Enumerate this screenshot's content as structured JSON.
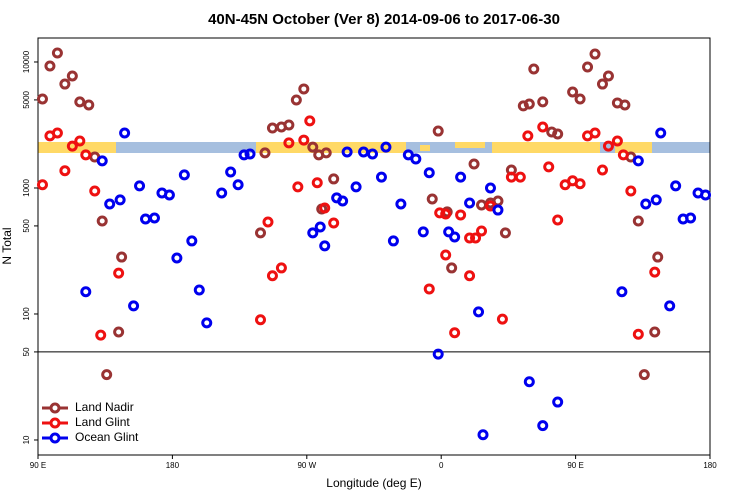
{
  "chart_data": {
    "type": "scatter",
    "title": "40N-45N October (Ver 8)   2014-09-06 to 2017-06-30",
    "x_label": "Longitude (deg E)",
    "y_label": "N Total",
    "log_y": true,
    "legend": "bottom-left",
    "hline": 50,
    "xlim": [
      90,
      540
    ],
    "xticks": [
      {
        "value": 90,
        "label": "90 E"
      },
      180,
      {
        "value": 270,
        "label": "90 W"
      },
      {
        "value": 360,
        "label": "0"
      },
      {
        "value": 450,
        "label": "90 E"
      },
      {
        "value": 540,
        "label": "180"
      }
    ],
    "ylim": [
      7.6,
      15500
    ],
    "yticks": [
      10,
      50,
      100,
      500,
      1000,
      5000,
      10000
    ],
    "series": [
      {
        "name": "Land Nadir",
        "color": "#993333",
        "x": [
          93,
          98,
          103,
          108,
          113,
          118,
          124,
          128,
          133,
          136,
          144,
          146,
          239,
          242,
          247,
          253,
          258,
          263,
          268,
          274,
          278,
          283,
          280,
          288,
          354,
          358,
          364,
          367,
          382,
          387,
          393,
          398,
          403,
          407,
          415,
          419,
          422,
          428,
          434,
          438,
          448,
          453,
          458,
          463,
          468,
          472,
          478,
          483,
          487,
          492,
          496,
          503,
          505
        ],
        "values": [
          5080,
          9290,
          11780,
          6680,
          7740,
          4820,
          4560,
          1760,
          547,
          33,
          72,
          283,
          440,
          1900,
          2990,
          3050,
          3160,
          4990,
          6110,
          2110,
          1830,
          1900,
          681,
          1180,
          818,
          2830,
          646,
          232,
          1550,
          733,
          760,
          788,
          440,
          1390,
          4480,
          4640,
          8790,
          4820,
          2780,
          2680,
          5780,
          5080,
          9130,
          11560,
          6680,
          7740,
          4730,
          4560,
          1760,
          547,
          33,
          72,
          283
        ]
      },
      {
        "name": "Land Glint",
        "color": "#ee1111",
        "x": [
          93,
          98,
          103,
          108,
          113,
          118,
          122,
          128,
          132,
          144,
          239,
          244,
          247,
          253,
          258,
          264,
          268,
          272,
          277,
          282,
          288,
          352,
          359,
          363,
          363,
          369,
          373,
          379,
          379,
          383,
          387,
          393,
          401,
          407,
          413,
          418,
          428,
          432,
          438,
          443,
          448,
          453,
          458,
          463,
          468,
          472,
          478,
          482,
          487,
          492,
          503
        ],
        "values": [
          1060,
          2590,
          2730,
          1370,
          2150,
          2360,
          1830,
          946,
          68,
          211,
          90,
          537,
          201,
          232,
          2280,
          1020,
          2400,
          3410,
          1100,
          694,
          527,
          158,
          634,
          622,
          294,
          71,
          611,
          201,
          401,
          401,
          456,
          719,
          91,
          1220,
          1220,
          2590,
          3050,
          1470,
          557,
          1060,
          1140,
          1080,
          2590,
          2730,
          1390,
          2150,
          2360,
          1830,
          946,
          69,
          215
        ]
      },
      {
        "name": "Ocean Glint",
        "color": "#0000ee",
        "x": [
          122,
          133,
          138,
          145,
          148,
          154,
          158,
          162,
          168,
          173,
          178,
          183,
          188,
          193,
          198,
          203,
          213,
          219,
          224,
          228,
          232,
          274,
          279,
          282,
          290,
          294,
          297,
          303,
          308,
          314,
          320,
          323,
          328,
          333,
          338,
          343,
          348,
          352,
          358,
          365,
          369,
          373,
          379,
          385,
          388,
          393,
          398,
          419,
          428,
          438,
          481,
          492,
          497,
          504,
          507,
          513,
          517,
          522,
          527,
          532,
          537
        ],
        "values": [
          150,
          1640,
          746,
          804,
          2730,
          116,
          1040,
          567,
          578,
          912,
          880,
          278,
          1270,
          380,
          155,
          85,
          912,
          1340,
          1060,
          1830,
          1860,
          440,
          490,
          347,
          834,
          788,
          1930,
          1020,
          1930,
          1860,
          1220,
          2110,
          380,
          746,
          1830,
          1700,
          448,
          1320,
          48,
          448,
          408,
          1220,
          760,
          104,
          11,
          1000,
          668,
          29,
          13,
          20,
          150,
          1640,
          746,
          804,
          2730,
          116,
          1040,
          567,
          578,
          912,
          880
        ]
      }
    ]
  }
}
